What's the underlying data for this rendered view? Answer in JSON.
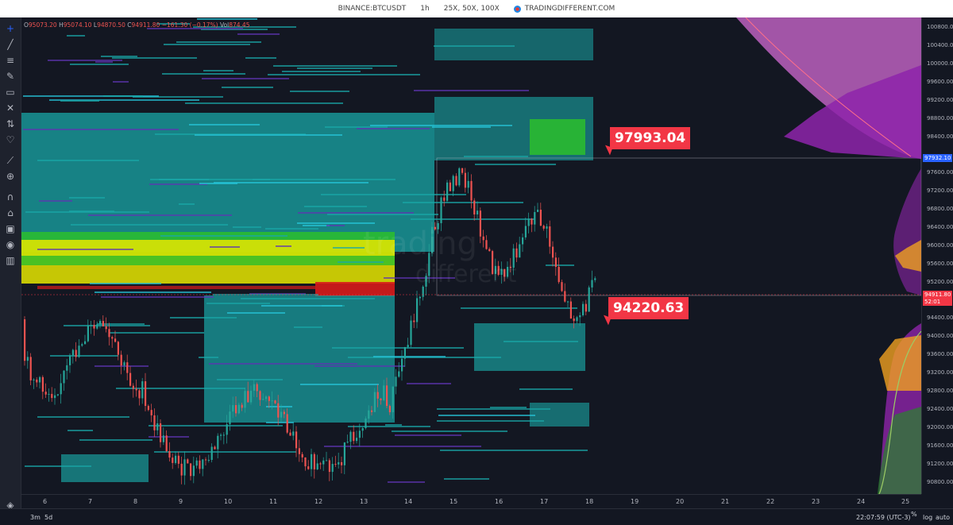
{
  "header": {
    "symbol": "BINANCE:BTCUSDT",
    "interval": "1h",
    "leverage": "25X, 50X, 100X",
    "brand": "TRADINGDIFFERENT.COM"
  },
  "legend": {
    "o_label": "O",
    "o_value": "95073.20",
    "h_label": "H",
    "h_value": "95074.10",
    "l_label": "L",
    "l_value": "94870.50",
    "c_label": "C",
    "c_value": "94911.80",
    "change": "−161.30 (−0.17%)",
    "vol_label": "Vol",
    "vol_value": "874.45"
  },
  "toolbar_icons": [
    "crosshair-icon",
    "trendline-icon",
    "fib-icon",
    "brush-icon",
    "comment-icon",
    "pattern-icon",
    "prediction-icon",
    "heart-icon",
    "ruler-icon",
    "zoom-icon",
    "magnet-icon",
    "lock-icon",
    "lock-closed-icon",
    "eye-icon",
    "trash-icon"
  ],
  "callouts": {
    "upper": "97993.04",
    "lower": "94220.63"
  },
  "watermark": {
    "line1": "trading",
    "line2": "different"
  },
  "price_axis": {
    "ticks": [
      "100800.00",
      "100400.00",
      "100000.00",
      "99600.00",
      "99200.00",
      "98800.00",
      "98400.00",
      "97600.00",
      "97200.00",
      "96800.00",
      "96400.00",
      "96000.00",
      "95600.00",
      "95200.00",
      "94400.00",
      "94000.00",
      "93600.00",
      "93200.00",
      "92800.00",
      "92400.00",
      "92000.00",
      "91600.00",
      "91200.00",
      "90800.00"
    ],
    "high_tag": "97932.10",
    "last_price": "94911.80",
    "countdown": "52:01",
    "colors": {
      "high_tag": "#2962ff",
      "last": "#f23645"
    }
  },
  "time_axis": {
    "ticks": [
      "6",
      "7",
      "8",
      "9",
      "10",
      "11",
      "12",
      "13",
      "14",
      "15",
      "16",
      "17",
      "18",
      "19",
      "20",
      "21",
      "22",
      "23",
      "24",
      "25"
    ]
  },
  "bottom_bar": {
    "range_3m": "3m",
    "range_5d": "5d",
    "clock": "22:07:59 (UTC-3)",
    "percent": "%",
    "log": "log",
    "auto": "auto"
  },
  "chart_data": {
    "type": "candlestick",
    "symbol": "BTCUSDT",
    "last": 94911.8,
    "ylim": [
      90500,
      101000
    ],
    "session_high": 97932.1,
    "levels": [
      97993.04,
      94220.63
    ]
  },
  "colors": {
    "background": "#131722",
    "up": "#26a69a",
    "down": "#ef5350",
    "heat_cyan": "#1aa7a7",
    "heat_green": "#2bbf2b",
    "heat_yellow": "#e6e600",
    "heat_red": "#d81b1b",
    "profile_purple": "#8e24aa",
    "profile_pink": "#e070e0",
    "profile_orange": "#f0a020"
  }
}
